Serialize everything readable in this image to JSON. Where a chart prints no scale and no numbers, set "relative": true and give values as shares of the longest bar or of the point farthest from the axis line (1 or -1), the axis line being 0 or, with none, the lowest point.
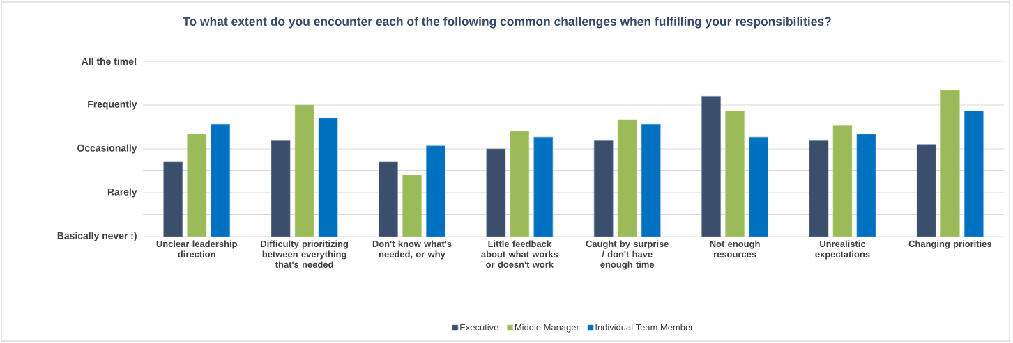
{
  "chart_data": {
    "type": "bar",
    "title": "To what extent do you encounter each of the following common challenges when fulfilling your responsibilities?",
    "categories": [
      "Unclear leadership direction",
      "Difficulty prioritizing between everything that's needed",
      "Don't know what's needed, or why",
      "Little feedback about what works or doesn't work",
      "Caught by surprise / don't have enough time",
      "Not enough resources",
      "Unrealistic expectations",
      "Changing priorities"
    ],
    "series": [
      {
        "name": "Executive",
        "color": "#3b4e6b",
        "values": [
          0.51,
          0.66,
          0.51,
          0.6,
          0.66,
          0.96,
          0.66,
          0.63
        ]
      },
      {
        "name": "Middle Manager",
        "color": "#9bbb59",
        "values": [
          0.7,
          0.9,
          0.42,
          0.72,
          0.8,
          0.86,
          0.76,
          1
        ]
      },
      {
        "name": "Individual Team Member",
        "color": "#0070c0",
        "values": [
          0.77,
          0.81,
          0.62,
          0.68,
          0.77,
          0.68,
          0.7,
          0.86
        ]
      }
    ],
    "relative": true,
    "annotations": [
      "All the time!",
      "Frequently",
      "Occasionally",
      "Rarely",
      "Basically never :)"
    ],
    "grid": "y",
    "legend": "bottom"
  }
}
